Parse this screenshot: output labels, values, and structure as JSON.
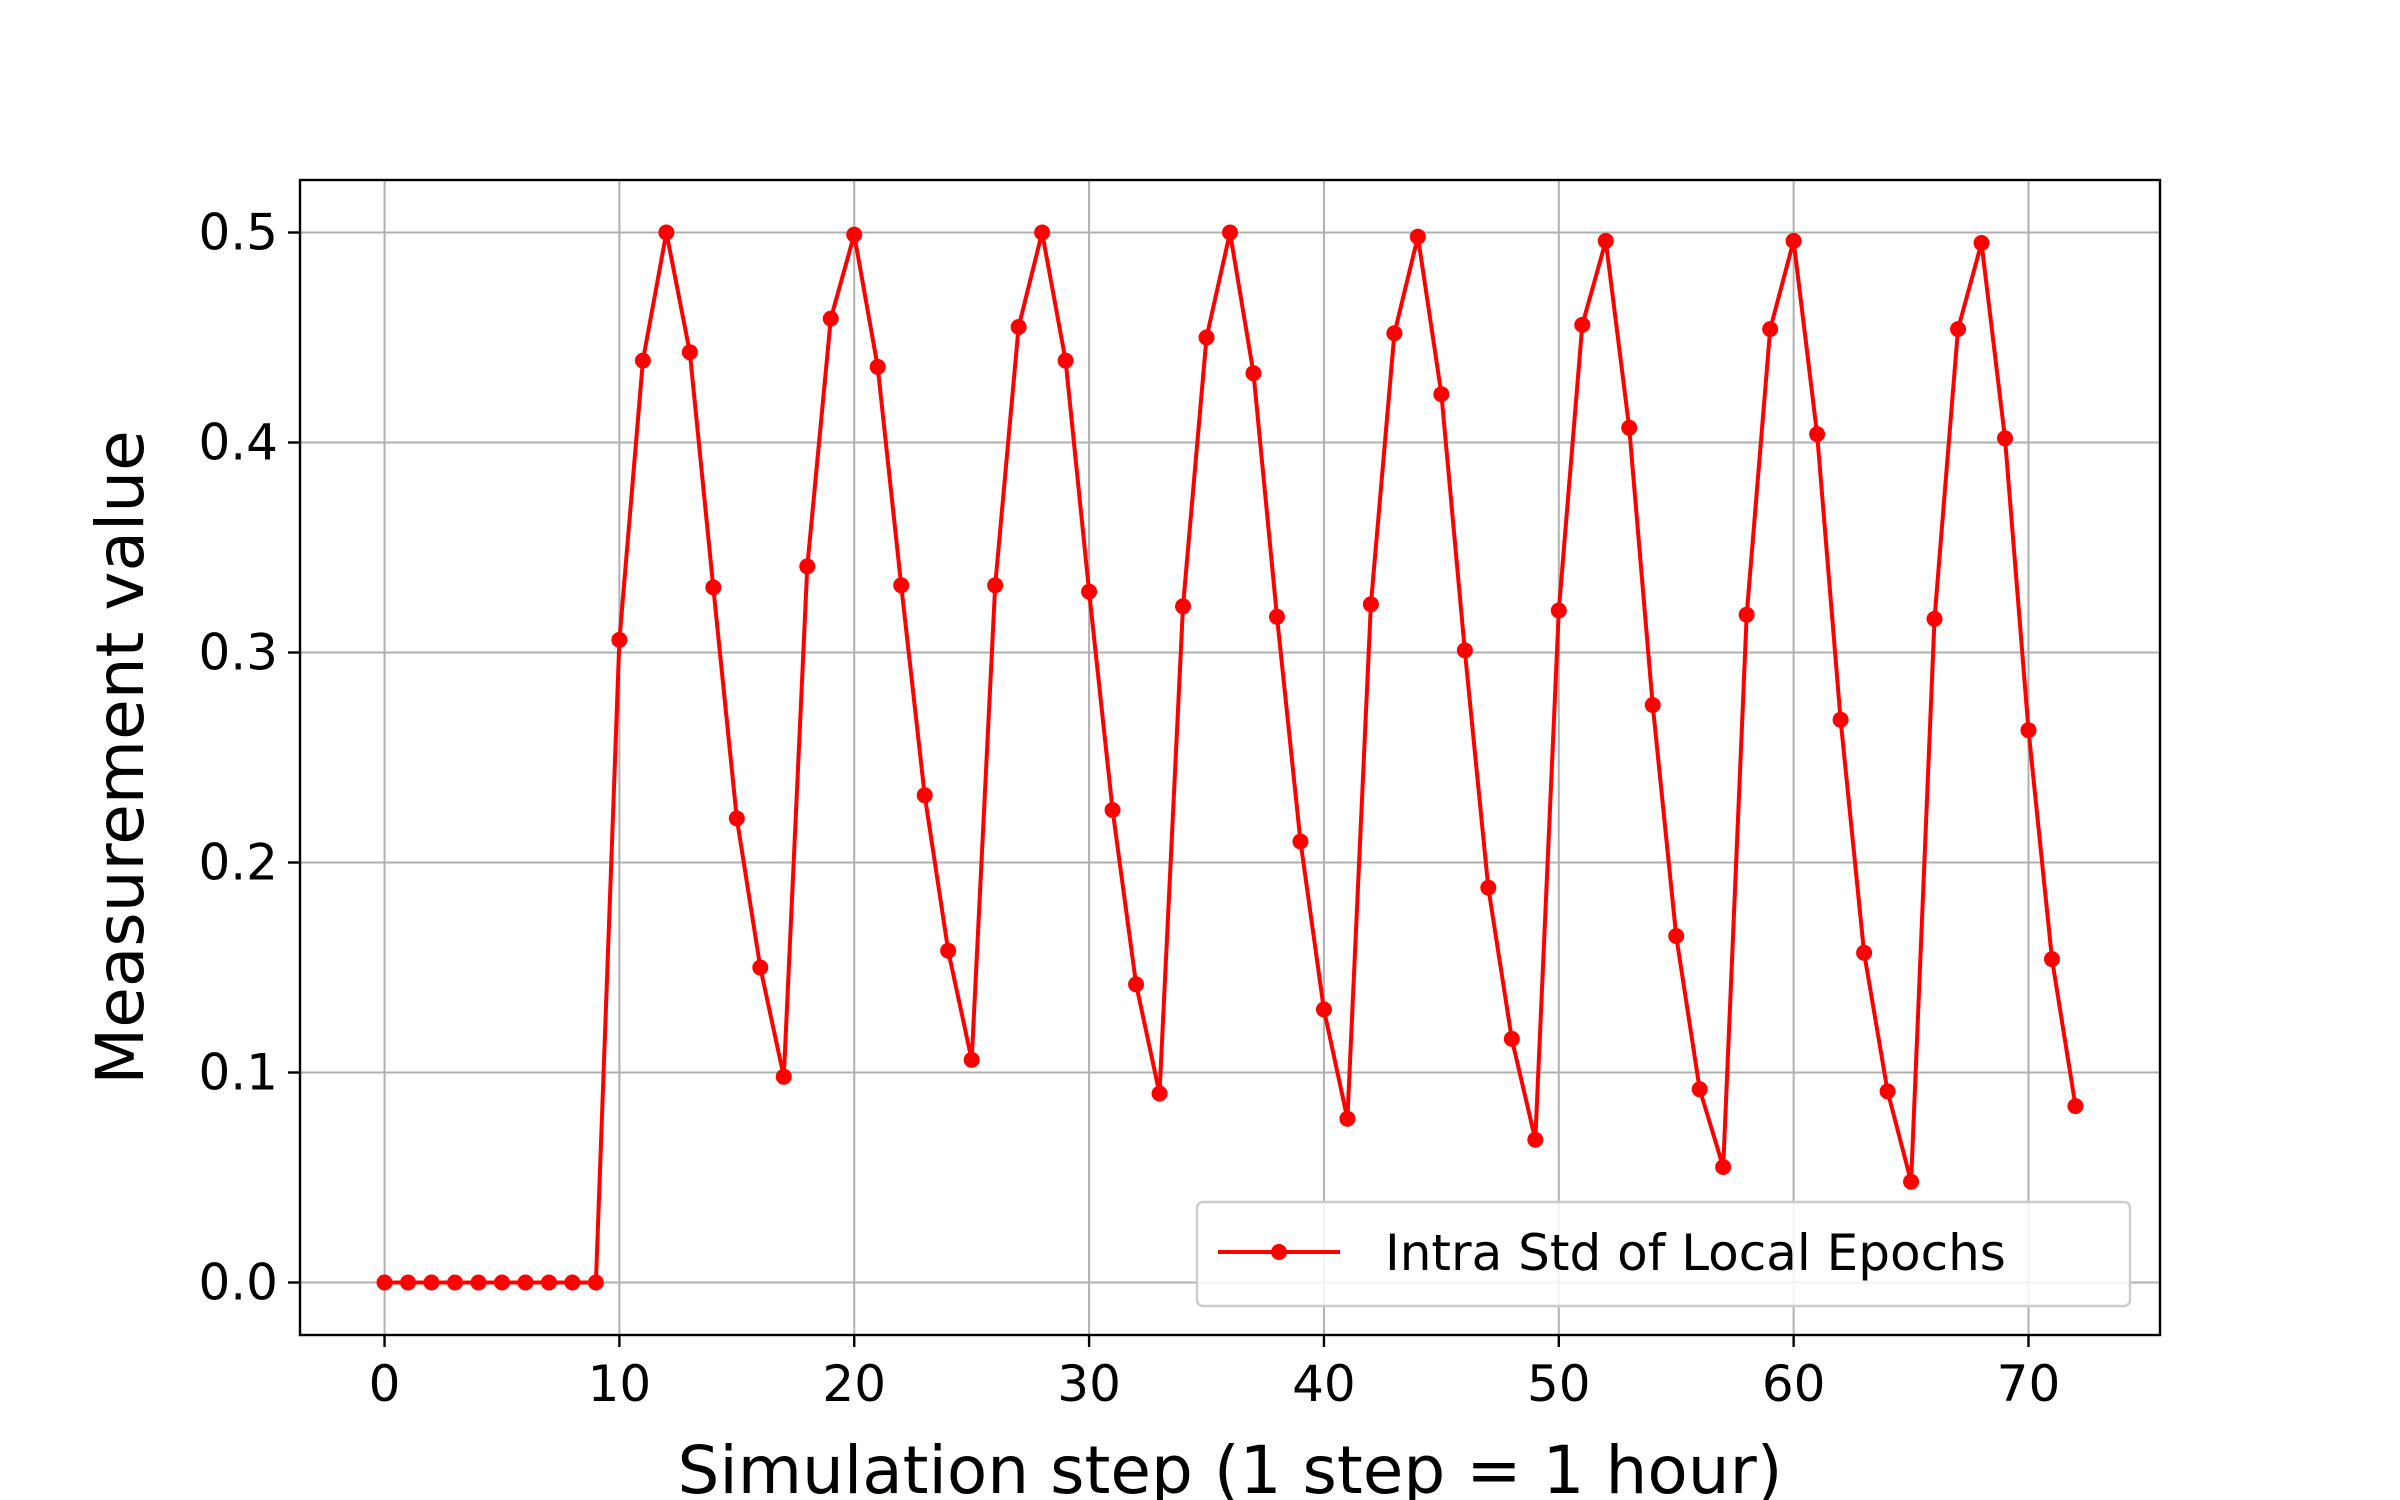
{
  "chart_data": {
    "type": "line",
    "title": "",
    "xlabel": "Simulation step (1 step = 1 hour)",
    "ylabel": "Measurement value",
    "xlim": [
      -3.6,
      75.6
    ],
    "ylim": [
      -0.025,
      0.525
    ],
    "xticks": [
      0,
      10,
      20,
      30,
      40,
      50,
      60,
      70
    ],
    "xtick_labels": [
      "0",
      "10",
      "20",
      "30",
      "40",
      "50",
      "60",
      "70"
    ],
    "yticks": [
      0.0,
      0.1,
      0.2,
      0.3,
      0.4,
      0.5
    ],
    "ytick_labels": [
      "0.0",
      "0.1",
      "0.2",
      "0.3",
      "0.4",
      "0.5"
    ],
    "grid": true,
    "legend_position": "lower-right",
    "series": [
      {
        "name": "Intra Std of Local Epochs",
        "color": "#ff0000",
        "marker": "circle",
        "x": [
          0,
          1,
          2,
          3,
          4,
          5,
          6,
          7,
          8,
          9,
          10,
          11,
          12,
          13,
          14,
          15,
          16,
          17,
          18,
          19,
          20,
          21,
          22,
          23,
          24,
          25,
          26,
          27,
          28,
          29,
          30,
          31,
          32,
          33,
          34,
          35,
          36,
          37,
          38,
          39,
          40,
          41,
          42,
          43,
          44,
          45,
          46,
          47,
          48,
          49,
          50,
          51,
          52,
          53,
          54,
          55,
          56,
          57,
          58,
          59,
          60,
          61,
          62,
          63,
          64,
          65,
          66,
          67,
          68,
          69,
          70,
          71,
          72
        ],
        "y": [
          0,
          0,
          0,
          0,
          0,
          0,
          0,
          0,
          0,
          0,
          0.306,
          0.439,
          0.5,
          0.443,
          0.331,
          0.221,
          0.15,
          0.098,
          0.341,
          0.459,
          0.499,
          0.436,
          0.332,
          0.232,
          0.158,
          0.106,
          0.332,
          0.455,
          0.5,
          0.439,
          0.329,
          0.225,
          0.142,
          0.09,
          0.322,
          0.45,
          0.5,
          0.433,
          0.317,
          0.21,
          0.13,
          0.078,
          0.323,
          0.452,
          0.498,
          0.423,
          0.301,
          0.188,
          0.116,
          0.068,
          0.32,
          0.456,
          0.496,
          0.407,
          0.275,
          0.165,
          0.092,
          0.055,
          0.318,
          0.454,
          0.496,
          0.404,
          0.268,
          0.157,
          0.091,
          0.048,
          0.316,
          0.454,
          0.495,
          0.402,
          0.263,
          0.154,
          0.084
        ]
      }
    ]
  }
}
